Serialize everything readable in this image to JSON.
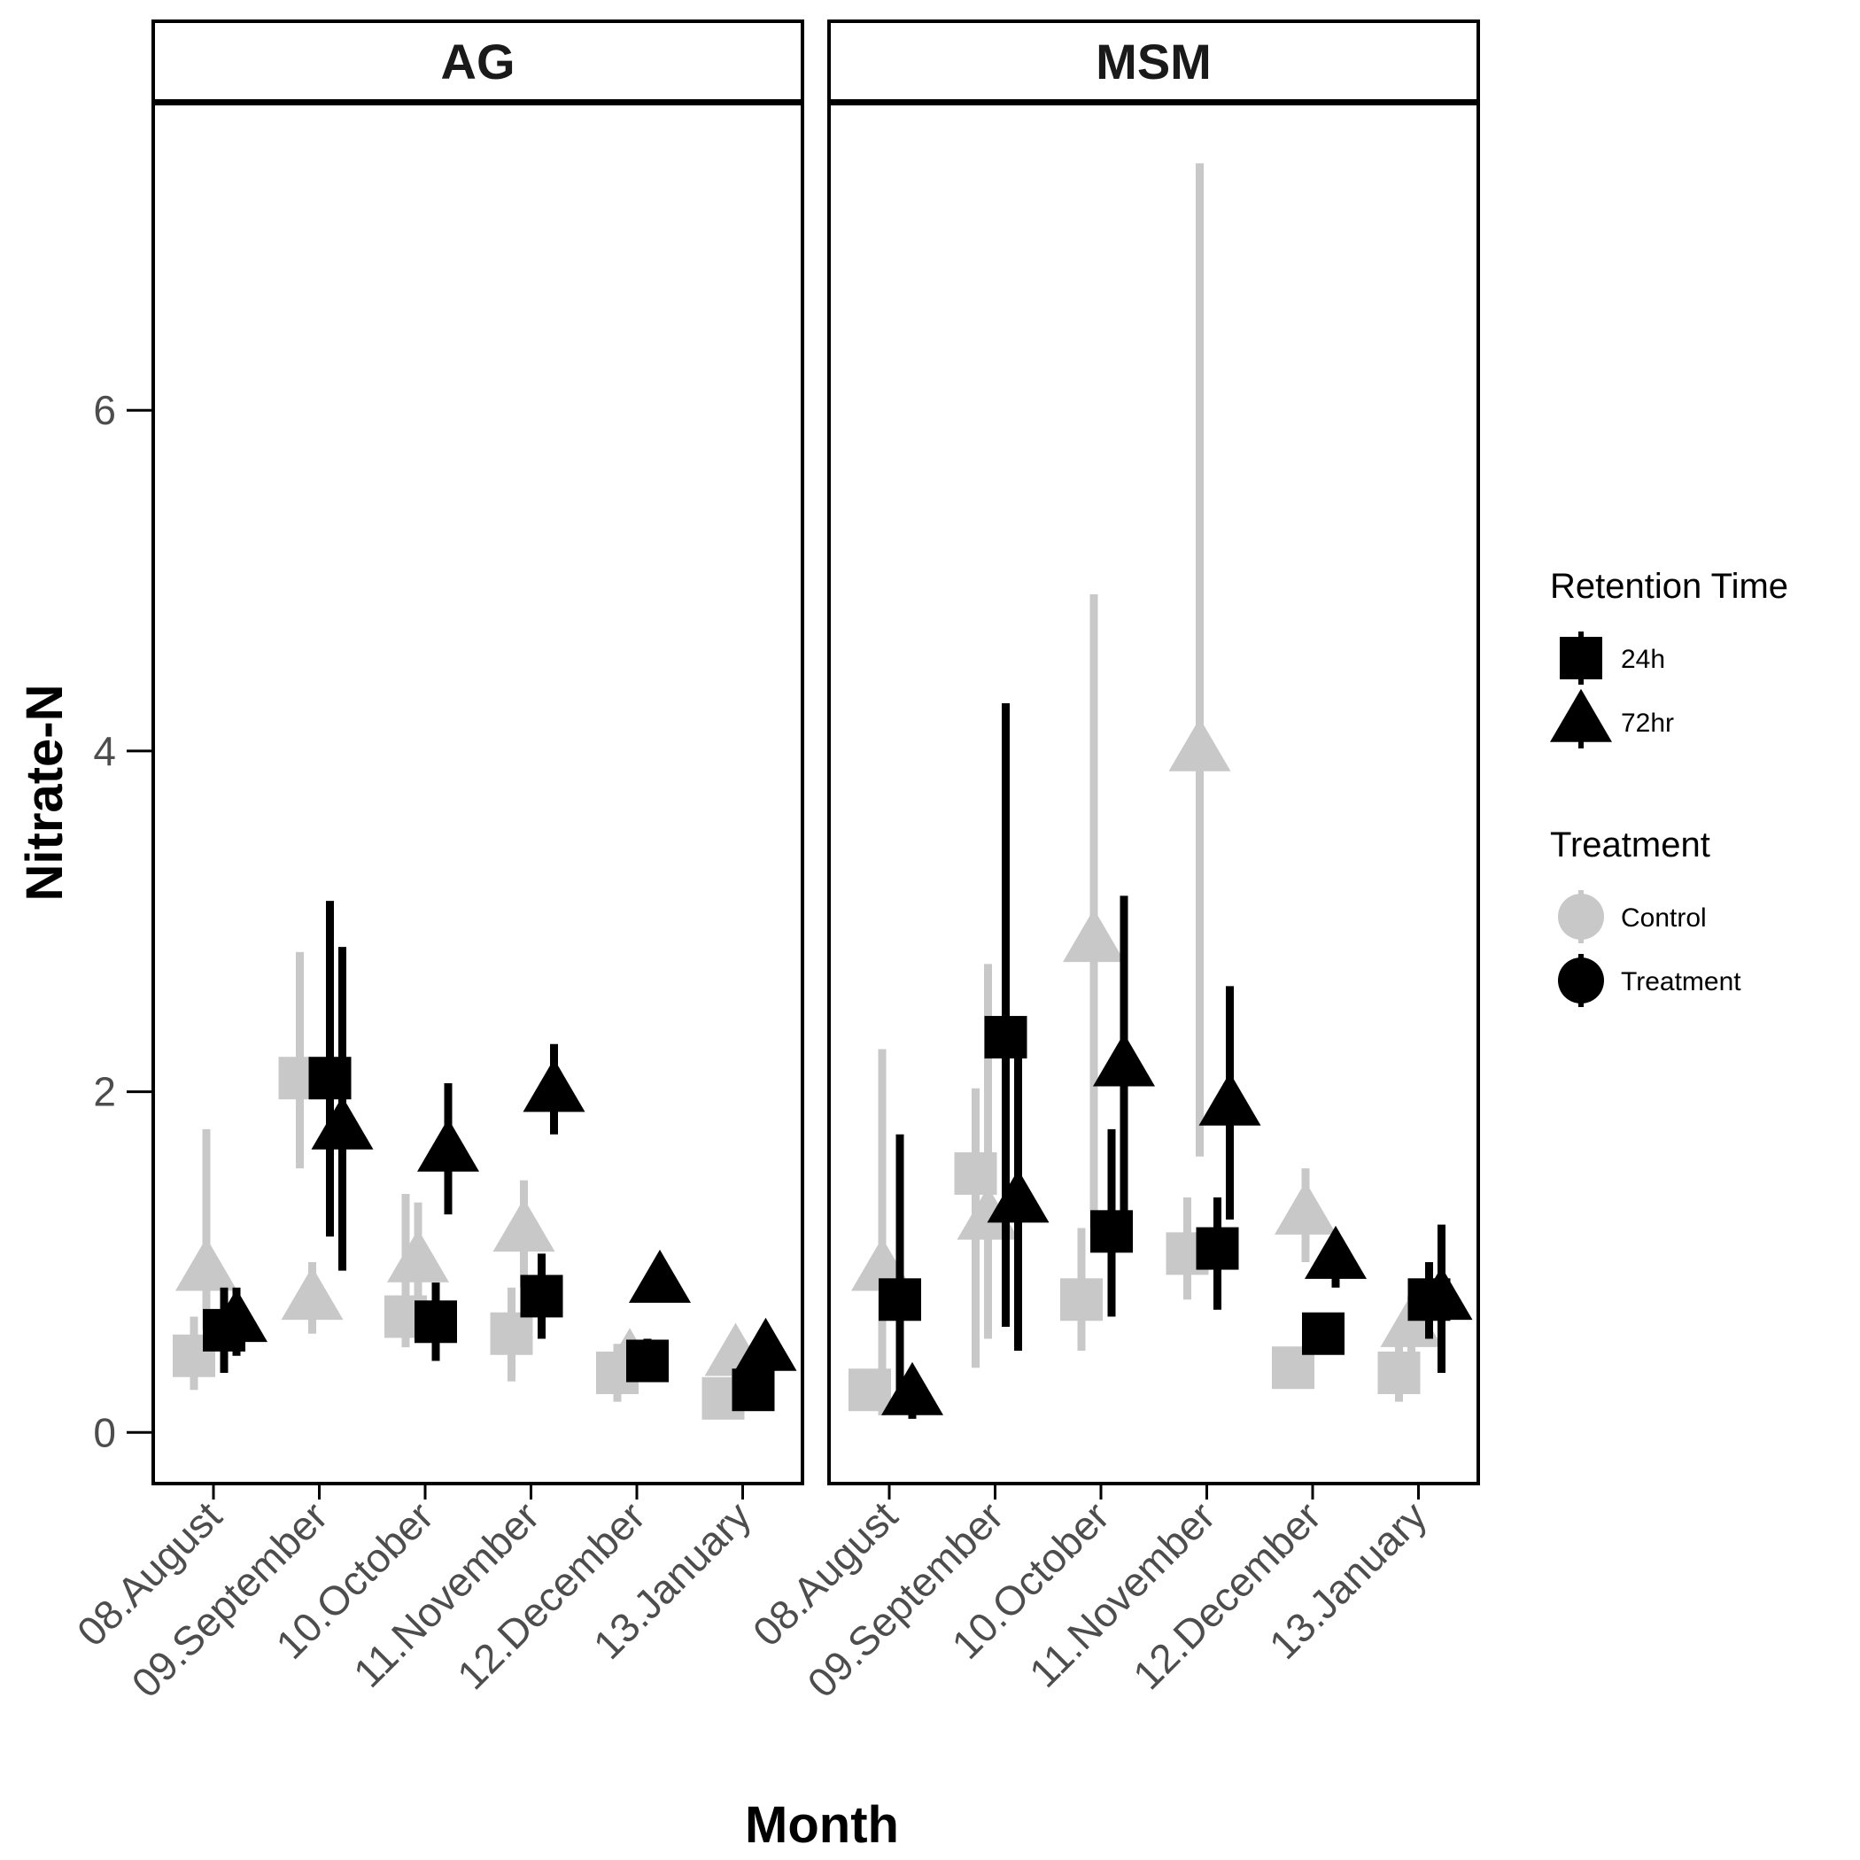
{
  "chart_data": {
    "type": "scatter",
    "xlabel": "Month",
    "ylabel": "Nitrate-N",
    "categories": [
      "08.August",
      "09.September",
      "10.October",
      "11.November",
      "12.December",
      "13.January"
    ],
    "y_ticks": [
      0,
      2,
      4,
      6
    ],
    "ylim": [
      -0.3,
      7.8
    ],
    "grid": false,
    "legend_placement": "right",
    "colors": {
      "Control": "#c8c8c8",
      "Treatment": "#000000"
    },
    "legends": [
      {
        "title": "Retention Time",
        "items": [
          {
            "label": "24h",
            "shape": "square"
          },
          {
            "label": "72hr",
            "shape": "triangle"
          }
        ]
      },
      {
        "title": "Treatment",
        "items": [
          {
            "label": "Control",
            "shape": "circle"
          },
          {
            "label": "Treatment",
            "shape": "circle"
          }
        ]
      }
    ],
    "panels": [
      {
        "label": "AG",
        "series": [
          {
            "treatment": "Control",
            "retention": "24h",
            "points": [
              {
                "month": "08.August",
                "y": 0.45,
                "lo": 0.25,
                "hi": 0.68
              },
              {
                "month": "09.September",
                "y": 2.08,
                "lo": 1.55,
                "hi": 2.82
              },
              {
                "month": "10.October",
                "y": 0.68,
                "lo": 0.5,
                "hi": 1.4
              },
              {
                "month": "11.November",
                "y": 0.58,
                "lo": 0.3,
                "hi": 0.85
              },
              {
                "month": "12.December",
                "y": 0.35,
                "lo": 0.18,
                "hi": 0.52
              },
              {
                "month": "13.January",
                "y": 0.2,
                "lo": 0.1,
                "hi": 0.3
              }
            ]
          },
          {
            "treatment": "Control",
            "retention": "72hr",
            "points": [
              {
                "month": "08.August",
                "y": 0.95,
                "lo": 0.6,
                "hi": 1.78
              },
              {
                "month": "09.September",
                "y": 0.78,
                "lo": 0.58,
                "hi": 1.0
              },
              {
                "month": "10.October",
                "y": 1.0,
                "lo": 0.55,
                "hi": 1.35
              },
              {
                "month": "11.November",
                "y": 1.18,
                "lo": 0.85,
                "hi": 1.48
              },
              {
                "month": "12.December",
                "y": 0.42,
                "lo": 0.25,
                "hi": 0.55
              },
              {
                "month": "13.January",
                "y": 0.45,
                "lo": 0.3,
                "hi": 0.6
              }
            ]
          },
          {
            "treatment": "Treatment",
            "retention": "24h",
            "points": [
              {
                "month": "08.August",
                "y": 0.6,
                "lo": 0.35,
                "hi": 0.85
              },
              {
                "month": "09.September",
                "y": 2.08,
                "lo": 1.15,
                "hi": 3.12
              },
              {
                "month": "10.October",
                "y": 0.65,
                "lo": 0.42,
                "hi": 0.88
              },
              {
                "month": "11.November",
                "y": 0.8,
                "lo": 0.55,
                "hi": 1.05
              },
              {
                "month": "12.December",
                "y": 0.42,
                "lo": 0.3,
                "hi": 0.55
              },
              {
                "month": "13.January",
                "y": 0.25,
                "lo": 0.18,
                "hi": 0.35
              }
            ]
          },
          {
            "treatment": "Treatment",
            "retention": "72hr",
            "points": [
              {
                "month": "08.August",
                "y": 0.65,
                "lo": 0.45,
                "hi": 0.85
              },
              {
                "month": "09.September",
                "y": 1.78,
                "lo": 0.95,
                "hi": 2.85
              },
              {
                "month": "10.October",
                "y": 1.65,
                "lo": 1.28,
                "hi": 2.05
              },
              {
                "month": "11.November",
                "y": 2.0,
                "lo": 1.75,
                "hi": 2.28
              },
              {
                "month": "12.December",
                "y": 0.88,
                "lo": 0.8,
                "hi": 0.95
              },
              {
                "month": "13.January",
                "y": 0.48,
                "lo": 0.4,
                "hi": 0.55
              }
            ]
          }
        ]
      },
      {
        "label": "MSM",
        "series": [
          {
            "treatment": "Control",
            "retention": "24h",
            "points": [
              {
                "month": "08.August",
                "y": 0.25,
                "lo": 0.18,
                "hi": 0.35
              },
              {
                "month": "09.September",
                "y": 1.52,
                "lo": 0.38,
                "hi": 2.02
              },
              {
                "month": "10.October",
                "y": 0.78,
                "lo": 0.48,
                "hi": 1.2
              },
              {
                "month": "11.November",
                "y": 1.05,
                "lo": 0.78,
                "hi": 1.38
              },
              {
                "month": "12.December",
                "y": 0.38,
                "lo": 0.3,
                "hi": 0.48
              },
              {
                "month": "13.January",
                "y": 0.35,
                "lo": 0.18,
                "hi": 0.52
              }
            ]
          },
          {
            "treatment": "Control",
            "retention": "72hr",
            "points": [
              {
                "month": "08.August",
                "y": 0.95,
                "lo": 0.1,
                "hi": 2.25
              },
              {
                "month": "09.September",
                "y": 1.25,
                "lo": 0.55,
                "hi": 2.75
              },
              {
                "month": "10.October",
                "y": 2.88,
                "lo": 1.2,
                "hi": 4.92
              },
              {
                "month": "11.November",
                "y": 4.0,
                "lo": 1.62,
                "hi": 7.45
              },
              {
                "month": "12.December",
                "y": 1.28,
                "lo": 1.0,
                "hi": 1.55
              },
              {
                "month": "13.January",
                "y": 0.62,
                "lo": 0.45,
                "hi": 0.8
              }
            ]
          },
          {
            "treatment": "Treatment",
            "retention": "24h",
            "points": [
              {
                "month": "08.August",
                "y": 0.78,
                "lo": 0.12,
                "hi": 1.75
              },
              {
                "month": "09.September",
                "y": 2.32,
                "lo": 0.62,
                "hi": 4.28
              },
              {
                "month": "10.October",
                "y": 1.18,
                "lo": 0.68,
                "hi": 1.78
              },
              {
                "month": "11.November",
                "y": 1.08,
                "lo": 0.72,
                "hi": 1.38
              },
              {
                "month": "12.December",
                "y": 0.58,
                "lo": 0.48,
                "hi": 0.7
              },
              {
                "month": "13.January",
                "y": 0.78,
                "lo": 0.55,
                "hi": 1.0
              }
            ]
          },
          {
            "treatment": "Treatment",
            "retention": "72hr",
            "points": [
              {
                "month": "08.August",
                "y": 0.22,
                "lo": 0.08,
                "hi": 0.35
              },
              {
                "month": "09.September",
                "y": 1.35,
                "lo": 0.48,
                "hi": 2.28
              },
              {
                "month": "10.October",
                "y": 2.15,
                "lo": 1.2,
                "hi": 3.15
              },
              {
                "month": "11.November",
                "y": 1.92,
                "lo": 1.25,
                "hi": 2.62
              },
              {
                "month": "12.December",
                "y": 1.02,
                "lo": 0.85,
                "hi": 1.15
              },
              {
                "month": "13.January",
                "y": 0.78,
                "lo": 0.35,
                "hi": 1.22
              }
            ]
          }
        ]
      }
    ]
  }
}
